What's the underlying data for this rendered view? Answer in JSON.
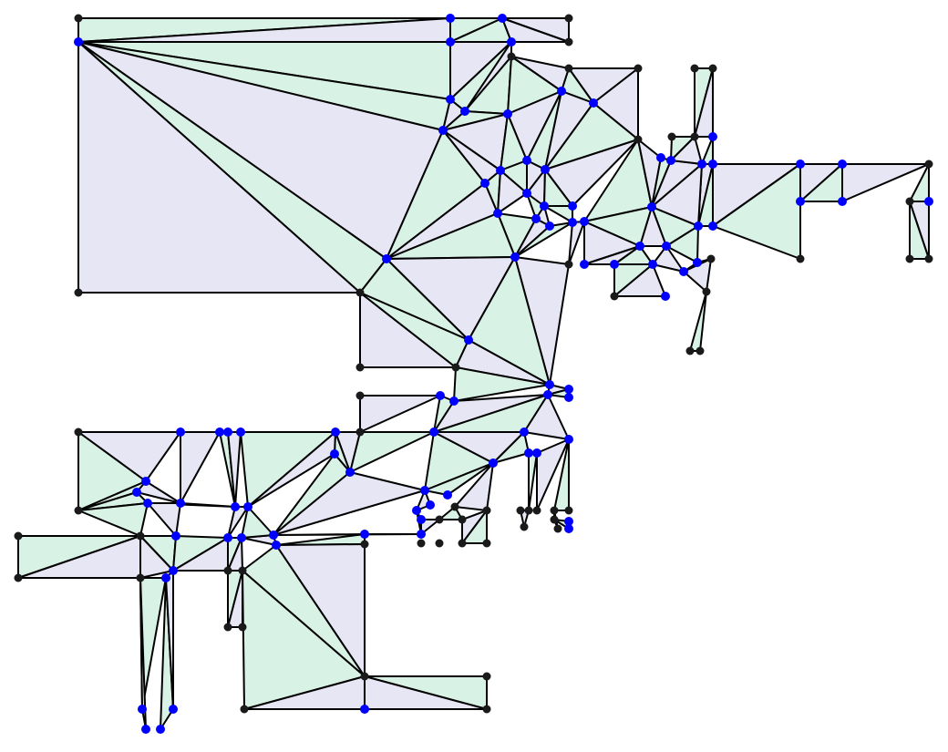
{
  "diagram": {
    "kind": "polygon-triangulation",
    "colors": {
      "edge": "#000000",
      "corner_vertex": "#1a1a1a",
      "steiner_vertex": "#0000ff",
      "fills": [
        "#d9f2e6",
        "#efeaf5",
        "#fbfaf0",
        "#eef3f7",
        "#f6e6ee",
        "#e6f5e6",
        "#f5efe6",
        "#e6e6f5",
        "#f8eef6",
        "#eaf4f4",
        "#e9dcf5",
        "#f9f2ea",
        "#dfe9f7",
        "#f3f9e3"
      ]
    }
  }
}
